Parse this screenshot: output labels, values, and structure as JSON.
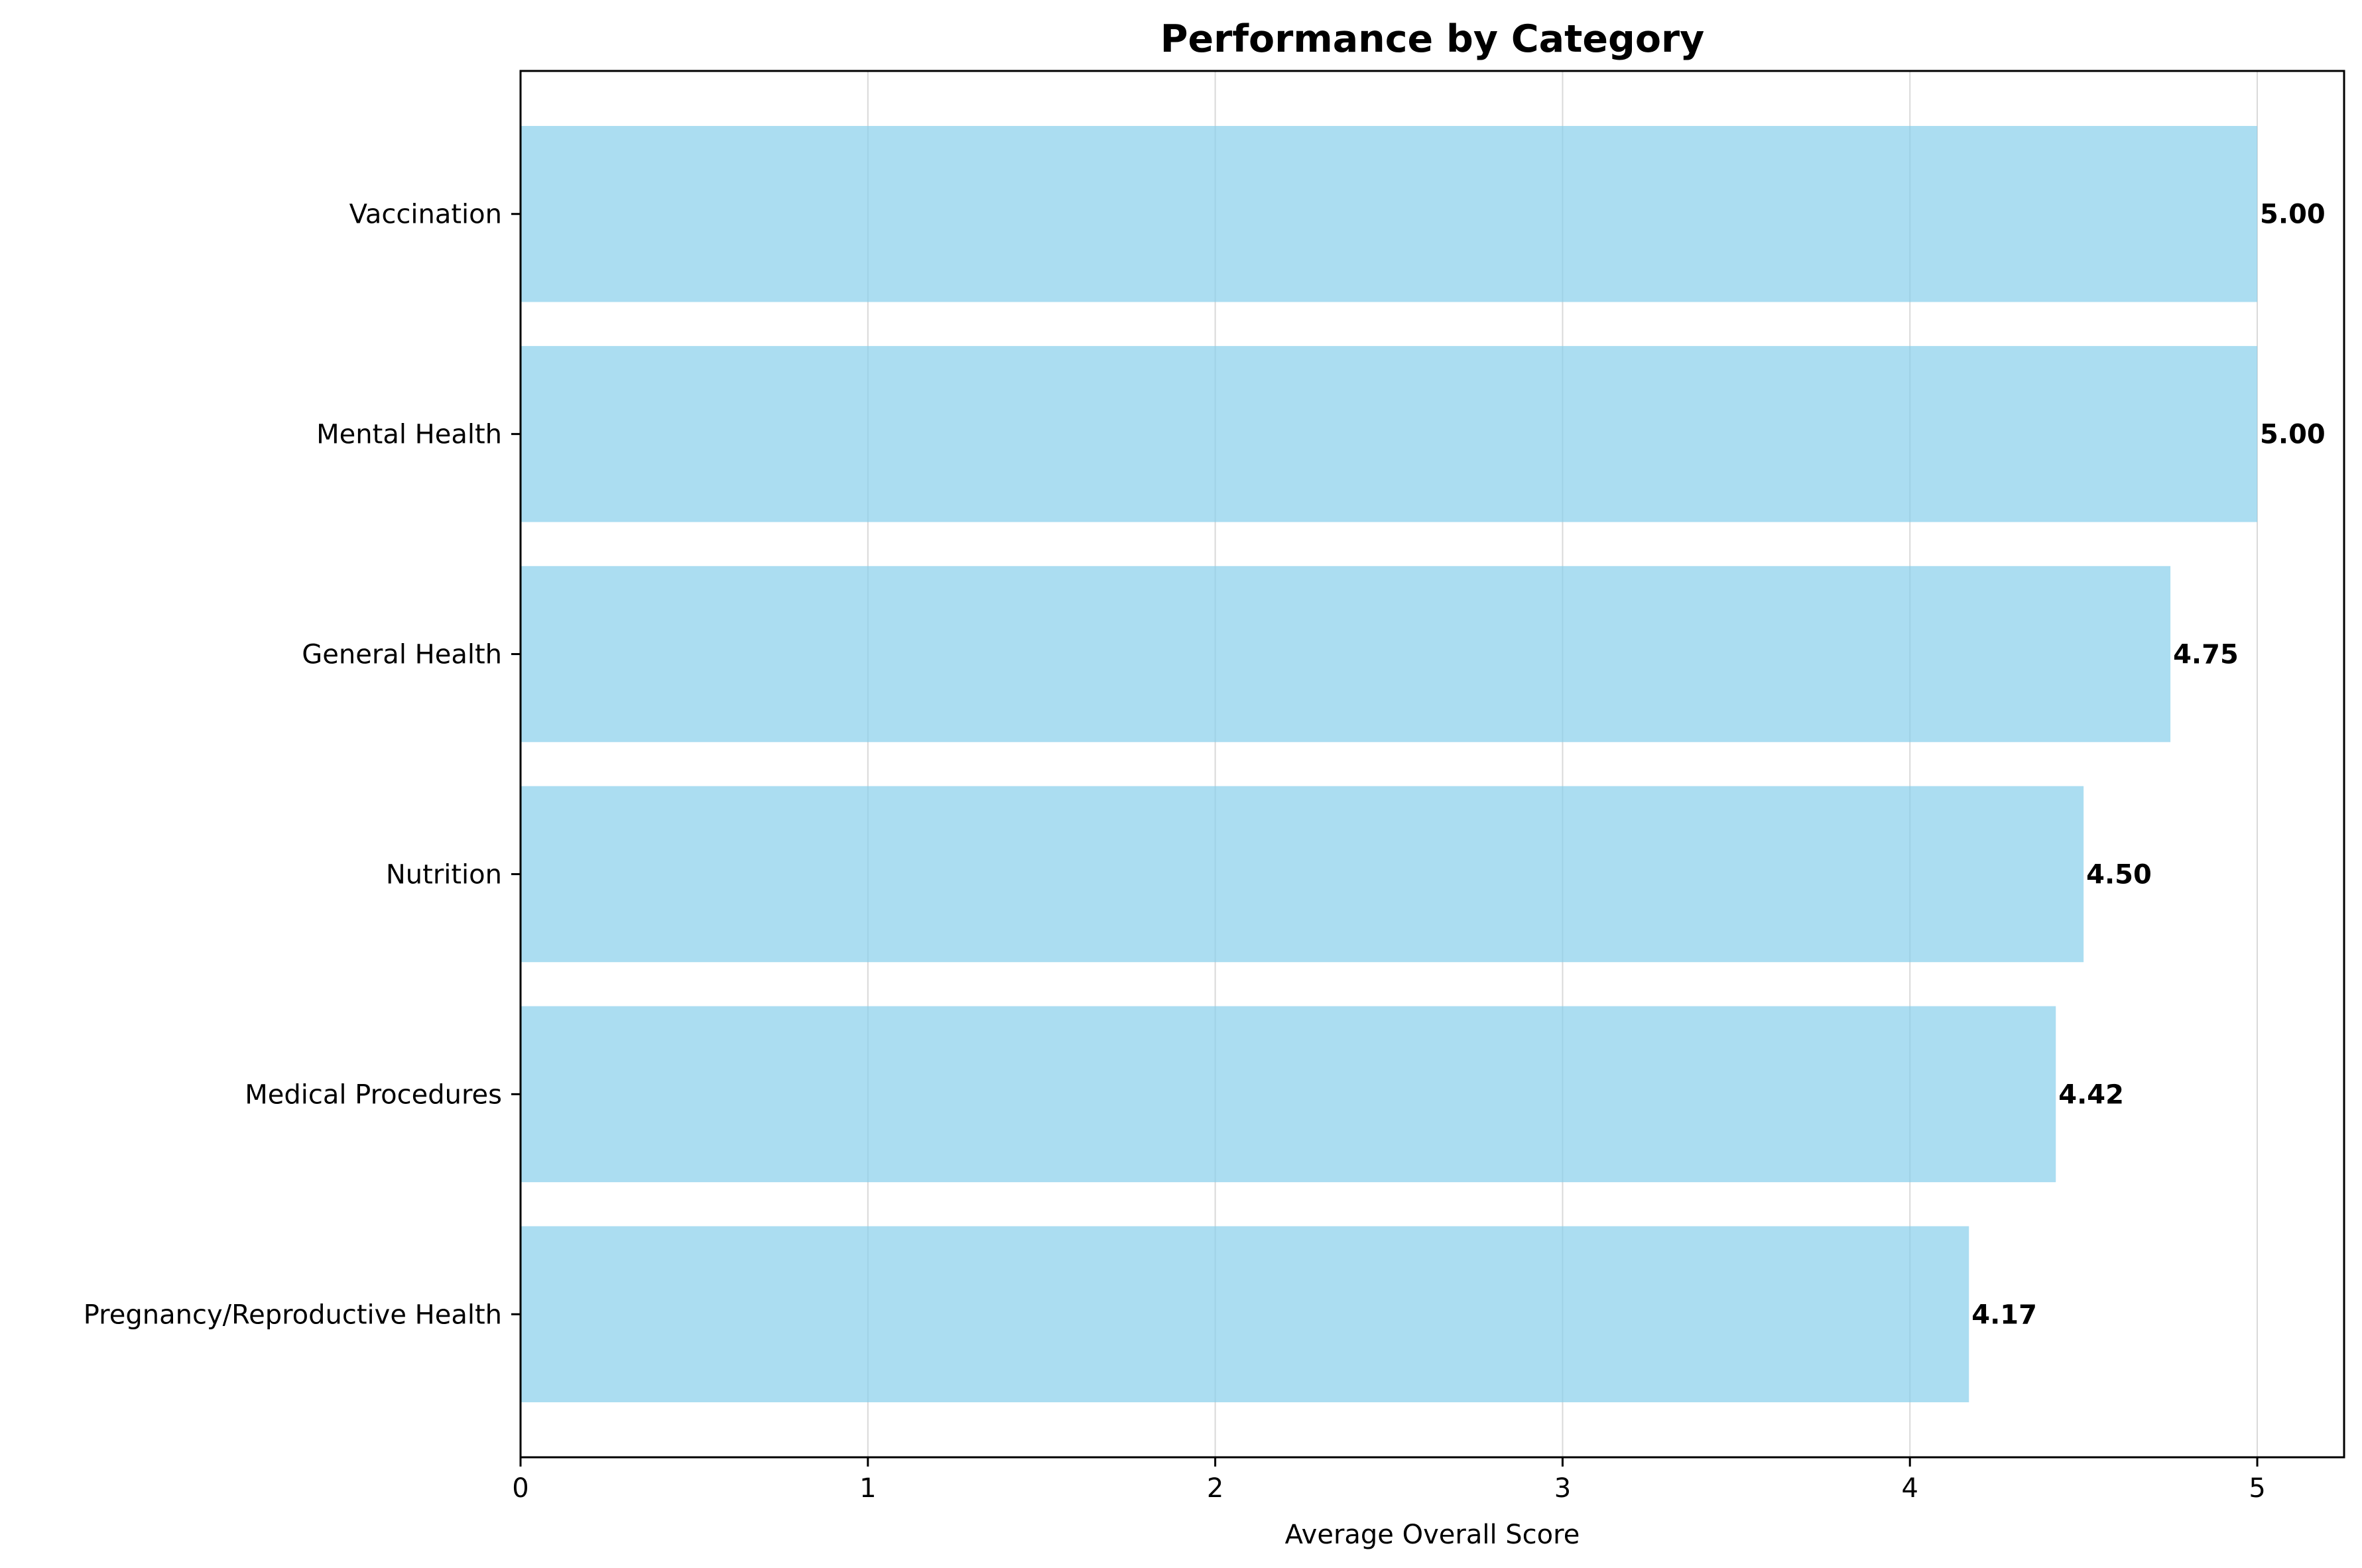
{
  "chart_data": {
    "type": "bar",
    "orientation": "horizontal",
    "title": "Performance by Category",
    "xlabel": "Average Overall Score",
    "ylabel": "",
    "categories": [
      "Vaccination",
      "Mental Health",
      "General Health",
      "Nutrition",
      "Medical Procedures",
      "Pregnancy/Reproductive Health"
    ],
    "values": [
      5.0,
      5.0,
      4.75,
      4.5,
      4.42,
      4.17
    ],
    "value_labels": [
      "5.00",
      "5.00",
      "4.75",
      "4.50",
      "4.42",
      "4.17"
    ],
    "xlim": [
      0,
      5.25
    ],
    "xticks": [
      0,
      1,
      2,
      3,
      4,
      5
    ],
    "xtick_labels": [
      "0",
      "1",
      "2",
      "3",
      "4",
      "5"
    ],
    "grid": "vertical",
    "bar_color": "#87ceeb",
    "grid_color": "#d9d9d9"
  }
}
